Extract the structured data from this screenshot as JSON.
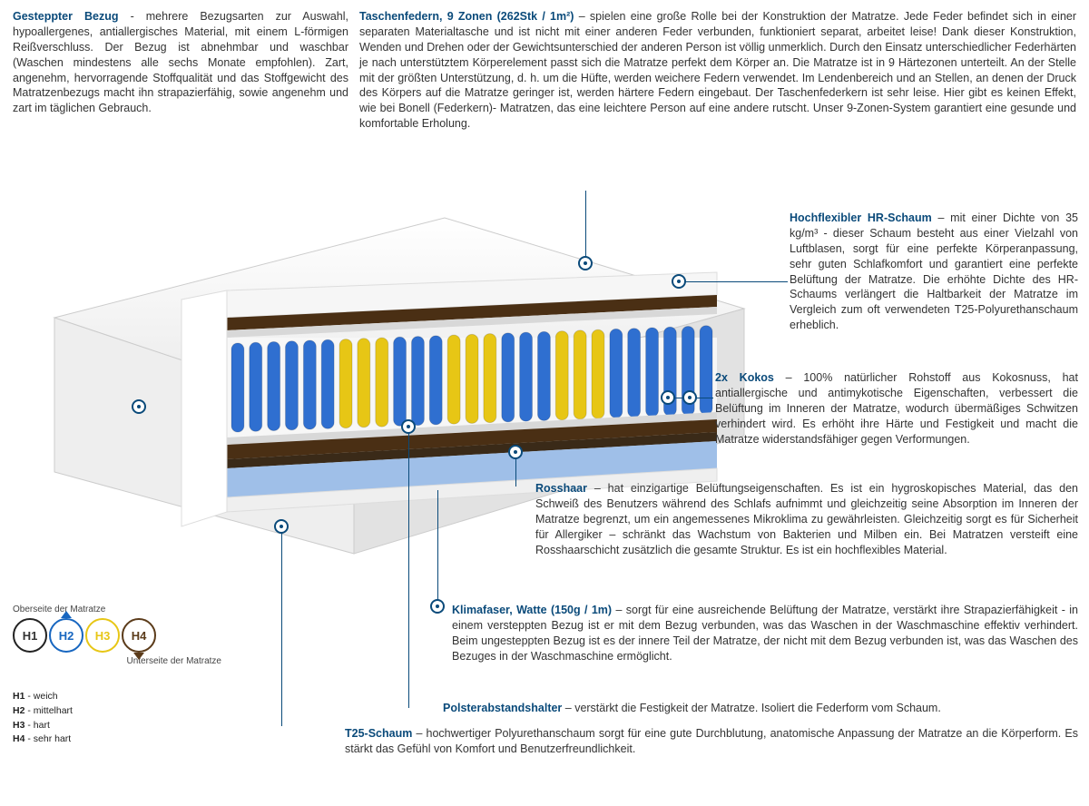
{
  "colors": {
    "accent": "#0a4a7a",
    "text": "#333333",
    "h1_border": "#222222",
    "h2_border": "#1766c0",
    "h3_border": "#e7c615",
    "h4_border": "#5b3b1a",
    "spring_blue": "#2f6fd0",
    "spring_yellow": "#e7c615",
    "coco": "#4a2f14",
    "foam_white": "#f3f3f3",
    "foam_blue": "#9fbfe8"
  },
  "top_left": {
    "title": "Gesteppter Bezug",
    "body": " - mehrere Bezugsarten zur Auswahl, hypoallergenes, antiallergisches Material, mit einem L-förmigen Reißverschluss. Der Bezug ist abnehmbar und waschbar (Waschen mindestens alle sechs Monate empfohlen). Zart, angenehm, hervorragende Stoffqualität und das Stoffgewicht des Matratzenbezugs macht ihn strapazierfähig, sowie angenehm und zart im täglichen Gebrauch."
  },
  "top_right": {
    "title": "Taschenfedern, 9 Zonen (262Stk / 1m²)",
    "body": " – spielen eine große Rolle bei der Konstruktion der Matratze. Jede Feder befindet sich in einer separaten Materialtasche und ist nicht mit einer anderen Feder verbunden, funktioniert separat, arbeitet leise! Dank dieser Konstruktion, Wenden und Drehen oder der Gewichtsunterschied der anderen Person ist völlig unmerklich. Durch den Einsatz unterschiedlicher Federhärten je nach unterstütztem Körperelement passt sich die Matratze perfekt dem Körper an. Die Matratze ist in 9 Härtezonen unterteilt. An der Stelle mit der größten Unterstützung, d. h. um die Hüfte, werden weichere Federn verwendet. Im Lendenbereich und an Stellen, an denen der Druck des Körpers auf die Matratze geringer ist, werden härtere Federn eingebaut. Der Taschenfederkern ist sehr leise. Hier gibt es keinen Effekt, wie bei Bonell (Federkern)- Matratzen, das eine leichtere Person auf eine andere rutscht. Unser 9-Zonen-System garantiert eine gesunde und komfortable Erholung."
  },
  "blocks": {
    "hr": {
      "title": "Hochflexibler HR-Schaum",
      "body": " – mit einer Dichte von 35 kg/m³ - dieser Schaum besteht aus einer Vielzahl von Luftblasen, sorgt für eine perfekte Körperanpassung, sehr guten Schlafkomfort und garantiert eine perfekte Belüftung der Matratze. Die erhöhte Dichte des HR-Schaums verlängert die Haltbarkeit der Matratze im Vergleich zum oft verwendeten T25-Polyurethanschaum erheblich."
    },
    "kokos": {
      "title": "2x Kokos",
      "body": " – 100% natürlicher Rohstoff aus Kokosnuss, hat antiallergische und antimykotische Eigenschaften, verbessert die Belüftung im Inneren der Matratze, wodurch übermäßiges Schwitzen verhindert wird. Es erhöht ihre Härte und Festigkeit und macht die Matratze widerstandsfähiger gegen Verformungen."
    },
    "ross": {
      "title": "Rosshaar",
      "body": " – hat einzigartige Belüftungseigenschaften. Es ist ein hygroskopisches Material, das den Schweiß des Benutzers während des Schlafs aufnimmt und gleichzeitig seine Absorption im Inneren der Matratze begrenzt, um ein angemessenes Mikroklima zu gewährleisten. Gleichzeitig sorgt es für Sicherheit für Allergiker – schränkt das Wachstum von Bakterien und Milben ein. Bei Matratzen versteift eine Rosshaarschicht zusätzlich die gesamte Struktur. Es ist ein hochflexibles Material."
    },
    "klima": {
      "title": "Klimafaser, Watte (150g / 1m)",
      "body": " – sorgt für eine ausreichende Belüftung der Matratze, verstärkt ihre Strapazierfähigkeit - in einem versteppten Bezug ist er mit dem Bezug verbunden, was das Waschen in der Waschmaschine effektiv verhindert. Beim ungesteppten Bezug ist es der innere Teil der Matratze, der nicht mit dem Bezug verbunden ist, was das Waschen des Bezuges in der Waschmaschine ermöglicht."
    },
    "polst": {
      "title": "Polsterabstandshalter",
      "body": " – verstärkt die Festigkeit der Matratze. Isoliert die Federform vom Schaum."
    },
    "t25": {
      "title": "T25-Schaum",
      "body": " – hochwertiger Polyurethanschaum sorgt für eine gute Durchblutung, anatomische Anpassung der Matratze an die Körperform. Es stärkt das Gefühl von Komfort und Benutzerfreundlichkeit."
    }
  },
  "legend": {
    "top_label": "Oberseite der Matratze",
    "bottom_label": "Unterseite der Matratze",
    "items": [
      {
        "code": "H1",
        "label": "weich"
      },
      {
        "code": "H2",
        "label": "mittelhart"
      },
      {
        "code": "H3",
        "label": "hart"
      },
      {
        "code": "H4",
        "label": "sehr hart"
      }
    ]
  },
  "mattress": {
    "spring_zones": [
      "blue",
      "blue",
      "yellow",
      "blue",
      "yellow",
      "blue",
      "yellow",
      "blue",
      "blue"
    ],
    "layers_top_to_bottom": [
      "cover",
      "klimafaser",
      "hr_foam",
      "kokos",
      "polster",
      "springs",
      "polster",
      "kokos",
      "rosshaar",
      "t25",
      "klimafaser",
      "cover"
    ]
  }
}
